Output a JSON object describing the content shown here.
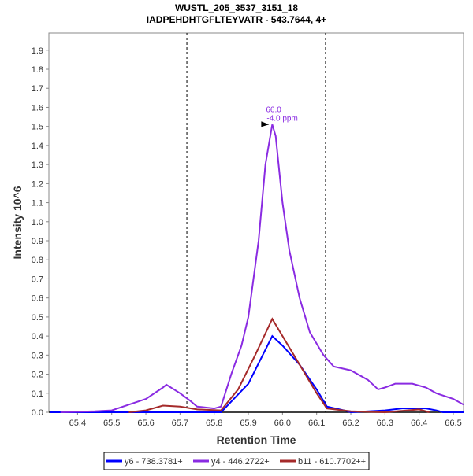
{
  "chart_data": {
    "type": "line",
    "title": "WUSTL_205_3537_3151_18",
    "subtitle": "IADPEHDHTGFLTEYVATR - 543.7644, 4+",
    "xlabel": "Retention Time",
    "ylabel": "Intensity 10^6",
    "xlim": [
      65.316,
      66.53
    ],
    "ylim": [
      0,
      1.99
    ],
    "xticks": [
      "65.4",
      "65.5",
      "65.6",
      "65.7",
      "65.8",
      "65.9",
      "66.0",
      "66.1",
      "66.2",
      "66.3",
      "66.4",
      "66.5"
    ],
    "yticks": [
      "0.0",
      "0.1",
      "0.2",
      "0.3",
      "0.4",
      "0.5",
      "0.6",
      "0.7",
      "0.8",
      "0.9",
      "1.0",
      "1.1",
      "1.2",
      "1.3",
      "1.4",
      "1.5",
      "1.6",
      "1.7",
      "1.8",
      "1.9"
    ],
    "integration_bounds": [
      65.72,
      66.126
    ],
    "annotation": {
      "x": 65.97,
      "y": 1.51,
      "lines": [
        "66.0",
        "-4.0 ppm"
      ],
      "color": "#8a2be2"
    },
    "legend_position": "bottom",
    "series": [
      {
        "name": "y6 - 738.3781+",
        "color": "#0000ff",
        "x": [
          65.32,
          65.82,
          65.9,
          65.97,
          66.0,
          66.05,
          66.1,
          66.13,
          66.18,
          66.2,
          66.3,
          66.35,
          66.42,
          66.45,
          66.47,
          66.53
        ],
        "y": [
          0,
          0,
          0.15,
          0.4,
          0.35,
          0.25,
          0.12,
          0.03,
          0.01,
          0,
          0.01,
          0.02,
          0.02,
          0.01,
          0,
          0
        ]
      },
      {
        "name": "y4 - 446.2722+",
        "color": "#8a2be2",
        "x": [
          65.35,
          65.45,
          65.5,
          65.55,
          65.6,
          65.65,
          65.66,
          65.7,
          65.73,
          65.75,
          65.8,
          65.82,
          65.85,
          65.88,
          65.9,
          65.93,
          65.95,
          65.97,
          65.98,
          66.0,
          66.02,
          66.05,
          66.08,
          66.12,
          66.15,
          66.2,
          66.25,
          66.28,
          66.3,
          66.33,
          66.38,
          66.42,
          66.45,
          66.5,
          66.53
        ],
        "y": [
          0,
          0.005,
          0.01,
          0.04,
          0.07,
          0.13,
          0.145,
          0.1,
          0.06,
          0.03,
          0.02,
          0.03,
          0.2,
          0.35,
          0.5,
          0.9,
          1.3,
          1.51,
          1.45,
          1.1,
          0.85,
          0.6,
          0.42,
          0.3,
          0.24,
          0.22,
          0.17,
          0.12,
          0.13,
          0.15,
          0.15,
          0.13,
          0.1,
          0.07,
          0.04
        ]
      },
      {
        "name": "b11 - 610.7702++",
        "color": "#a52a2a",
        "x": [
          65.55,
          65.6,
          65.65,
          65.7,
          65.75,
          65.82,
          65.87,
          65.92,
          65.97,
          66.0,
          66.05,
          66.1,
          66.13,
          66.2,
          66.3,
          66.4,
          66.43
        ],
        "y": [
          0,
          0.01,
          0.035,
          0.03,
          0.015,
          0.01,
          0.12,
          0.3,
          0.49,
          0.4,
          0.25,
          0.1,
          0.02,
          0.005,
          0,
          0.015,
          0
        ]
      }
    ]
  }
}
